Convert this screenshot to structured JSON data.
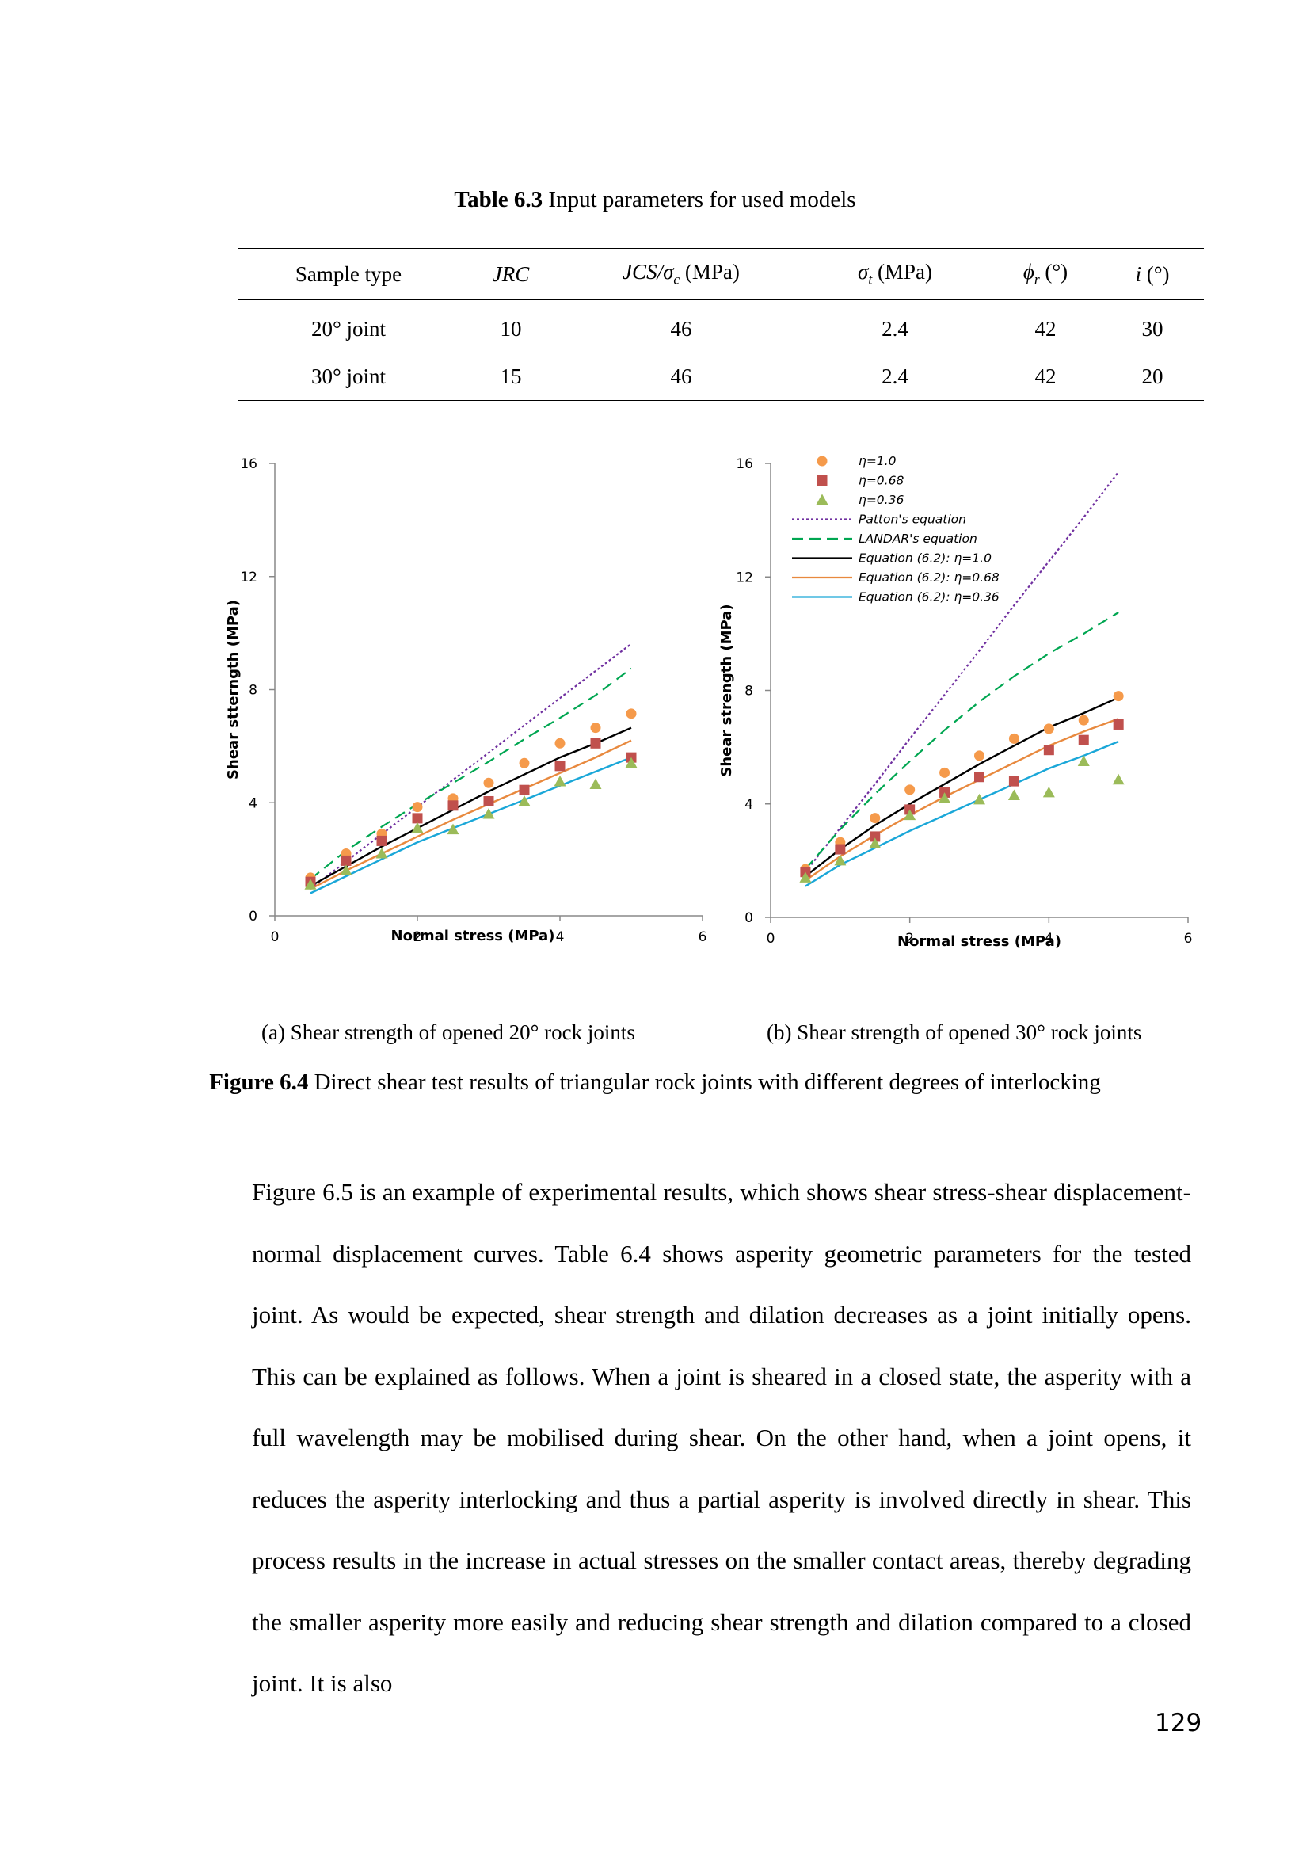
{
  "table": {
    "caption_label": "Table 6.3",
    "caption_text": " Input parameters for used models",
    "headers": [
      "Sample type",
      "JRC",
      "JCS/σ",
      "c",
      " (MPa)",
      "σ",
      "t",
      " (MPa)",
      "ϕ",
      "r",
      " (°)",
      "i",
      " (°)"
    ],
    "rows": [
      [
        "20° joint",
        "10",
        "46",
        "2.4",
        "42",
        "30"
      ],
      [
        "30° joint",
        "15",
        "46",
        "2.4",
        "42",
        "20"
      ]
    ]
  },
  "chart_data": [
    {
      "type": "scatter",
      "subcaption": "(a) Shear strength of opened 20° rock joints",
      "xlabel": "Normal stress (MPa)",
      "ylabel": "Shear stterngth (MPa)",
      "xlim": [
        0,
        6
      ],
      "ylim": [
        0,
        16
      ],
      "xticks": [
        "0",
        "2",
        "4",
        "6"
      ],
      "yticks": [
        "0",
        "4",
        "8",
        "12",
        "16"
      ],
      "legend": "none",
      "series": [
        {
          "name": "η=1.0",
          "marker": "circle",
          "color": "#f59a4b",
          "x": [
            0.5,
            1.0,
            1.5,
            2.0,
            2.5,
            3.0,
            3.5,
            4.0,
            4.5,
            5.0
          ],
          "y": [
            1.35,
            2.2,
            2.9,
            3.85,
            4.15,
            4.7,
            5.4,
            6.1,
            6.65,
            7.15
          ]
        },
        {
          "name": "η=0.68",
          "marker": "square",
          "color": "#c0504d",
          "x": [
            0.5,
            1.0,
            1.5,
            2.0,
            2.5,
            3.0,
            3.5,
            4.0,
            4.5,
            5.0
          ],
          "y": [
            1.2,
            1.95,
            2.65,
            3.45,
            3.9,
            4.05,
            4.45,
            5.3,
            6.1,
            5.6
          ]
        },
        {
          "name": "η=0.36",
          "marker": "triangle",
          "color": "#9bbb59",
          "x": [
            0.5,
            1.0,
            1.5,
            2.0,
            2.5,
            3.0,
            3.5,
            4.0,
            4.5,
            5.0
          ],
          "y": [
            1.1,
            1.6,
            2.2,
            3.1,
            3.05,
            3.6,
            4.05,
            4.75,
            4.65,
            5.4
          ]
        },
        {
          "name": "Patton's equation",
          "line": "dotted",
          "color": "#7030a0",
          "x": [
            0.5,
            1.0,
            1.5,
            2.0,
            2.5,
            3.0,
            3.5,
            4.0,
            4.5,
            5.0
          ],
          "y": [
            0.96,
            1.92,
            2.89,
            3.85,
            4.81,
            5.77,
            6.74,
            7.7,
            8.66,
            9.62
          ]
        },
        {
          "name": "LANDAR's equation",
          "line": "dashed",
          "color": "#00a651",
          "x": [
            0.5,
            1.0,
            1.5,
            2.0,
            2.5,
            3.0,
            3.5,
            4.0,
            4.5,
            5.0
          ],
          "y": [
            1.3,
            2.3,
            3.15,
            3.95,
            4.7,
            5.45,
            6.25,
            7.0,
            7.8,
            8.75
          ]
        },
        {
          "name": "Equation (6.2): η=1.0",
          "line": "solid",
          "color": "#000000",
          "x": [
            0.5,
            1.0,
            1.5,
            2.0,
            2.5,
            3.0,
            3.5,
            4.0,
            4.5,
            5.0
          ],
          "y": [
            1.05,
            1.75,
            2.45,
            3.1,
            3.75,
            4.4,
            5.0,
            5.6,
            6.1,
            6.65
          ]
        },
        {
          "name": "Equation (6.2): η=0.68",
          "line": "solid",
          "color": "#e8893e",
          "x": [
            0.5,
            1.0,
            1.5,
            2.0,
            2.5,
            3.0,
            3.5,
            4.0,
            4.5,
            5.0
          ],
          "y": [
            0.95,
            1.6,
            2.2,
            2.8,
            3.4,
            3.95,
            4.5,
            5.05,
            5.6,
            6.2
          ]
        },
        {
          "name": "Equation (6.2): η=0.36",
          "line": "solid",
          "color": "#1aa7d8",
          "x": [
            0.5,
            1.0,
            1.5,
            2.0,
            2.5,
            3.0,
            3.5,
            4.0,
            4.5,
            5.0
          ],
          "y": [
            0.8,
            1.4,
            2.0,
            2.6,
            3.1,
            3.6,
            4.1,
            4.6,
            5.1,
            5.6
          ]
        }
      ]
    },
    {
      "type": "scatter",
      "subcaption": "(b) Shear strength of opened 30° rock joints",
      "xlabel": "Normal stress (MPa)",
      "ylabel": "Shear strength (MPa)",
      "xlim": [
        0,
        6
      ],
      "ylim": [
        0,
        16
      ],
      "xticks": [
        "0",
        "2",
        "4",
        "6"
      ],
      "yticks": [
        "0",
        "4",
        "8",
        "12",
        "16"
      ],
      "legend": "top-left",
      "series": [
        {
          "name": "η=1.0",
          "marker": "circle",
          "color": "#f59a4b",
          "x": [
            0.5,
            1.0,
            1.5,
            2.0,
            2.5,
            3.0,
            3.5,
            4.0,
            4.5,
            5.0
          ],
          "y": [
            1.7,
            2.65,
            3.5,
            4.5,
            5.1,
            5.7,
            6.3,
            6.65,
            6.95,
            7.8
          ]
        },
        {
          "name": "η=0.68",
          "marker": "square",
          "color": "#c0504d",
          "x": [
            0.5,
            1.0,
            1.5,
            2.0,
            2.5,
            3.0,
            3.5,
            4.0,
            4.5,
            5.0
          ],
          "y": [
            1.6,
            2.4,
            2.85,
            3.8,
            4.4,
            4.95,
            4.8,
            5.9,
            6.25,
            6.8
          ]
        },
        {
          "name": "η=0.36",
          "marker": "triangle",
          "color": "#9bbb59",
          "x": [
            0.5,
            1.0,
            1.5,
            2.0,
            2.5,
            3.0,
            3.5,
            4.0,
            4.5,
            5.0
          ],
          "y": [
            1.4,
            2.0,
            2.6,
            3.6,
            4.2,
            4.15,
            4.3,
            4.4,
            5.5,
            4.85
          ]
        },
        {
          "name": "Patton's equation",
          "line": "dotted",
          "color": "#7030a0",
          "x": [
            0.5,
            1.0,
            1.5,
            2.0,
            2.5,
            3.0,
            3.5,
            4.0,
            4.5,
            5.0
          ],
          "y": [
            1.6,
            3.15,
            4.7,
            6.3,
            7.85,
            9.4,
            11.0,
            12.55,
            14.1,
            15.7
          ]
        },
        {
          "name": "LANDAR's equation",
          "line": "dashed",
          "color": "#00a651",
          "x": [
            0.5,
            1.0,
            1.5,
            2.0,
            2.5,
            3.0,
            3.5,
            4.0,
            4.5,
            5.0
          ],
          "y": [
            1.7,
            3.1,
            4.35,
            5.5,
            6.6,
            7.6,
            8.5,
            9.3,
            10.0,
            10.75
          ]
        },
        {
          "name": "Equation (6.2): η=1.0",
          "line": "solid",
          "color": "#000000",
          "x": [
            0.5,
            1.0,
            1.5,
            2.0,
            2.5,
            3.0,
            3.5,
            4.0,
            4.5,
            5.0
          ],
          "y": [
            1.45,
            2.4,
            3.25,
            4.0,
            4.7,
            5.4,
            6.05,
            6.7,
            7.2,
            7.75
          ]
        },
        {
          "name": "Equation (6.2): η=0.68",
          "line": "solid",
          "color": "#e8893e",
          "x": [
            0.5,
            1.0,
            1.5,
            2.0,
            2.5,
            3.0,
            3.5,
            4.0,
            4.5,
            5.0
          ],
          "y": [
            1.3,
            2.15,
            2.9,
            3.6,
            4.25,
            4.85,
            5.45,
            6.05,
            6.55,
            7.0
          ]
        },
        {
          "name": "Equation (6.2): η=0.36",
          "line": "solid",
          "color": "#1aa7d8",
          "x": [
            0.5,
            1.0,
            1.5,
            2.0,
            2.5,
            3.0,
            3.5,
            4.0,
            4.5,
            5.0
          ],
          "y": [
            1.1,
            1.85,
            2.45,
            3.05,
            3.6,
            4.15,
            4.7,
            5.25,
            5.7,
            6.2
          ]
        }
      ]
    }
  ],
  "figure": {
    "caption_label": "Figure 6.4",
    "caption_text": " Direct shear test results of triangular rock joints with different degrees of interlocking"
  },
  "body_text": "Figure 6.5 is an example of experimental results, which shows shear stress-shear displacement-normal displacement curves. Table 6.4 shows asperity geometric parameters for the tested joint. As would be expected, shear strength and dilation decreases as a joint initially opens. This can be explained as follows. When a joint is sheared in a closed state, the asperity with a full wavelength may be mobilised during shear. On the other hand, when a joint opens, it reduces the asperity interlocking and thus a partial asperity is involved directly in shear. This process results in the increase in actual stresses on the smaller contact areas, thereby degrading the smaller asperity more easily and reducing shear strength and dilation compared to a closed joint. It is also",
  "page_number": "129"
}
